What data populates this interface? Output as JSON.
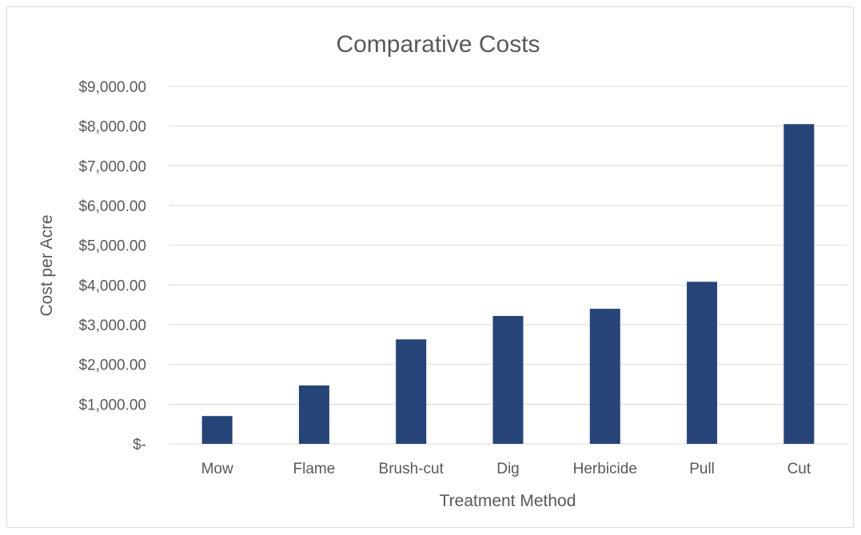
{
  "chart_data": {
    "type": "bar",
    "title": "Comparative Costs",
    "xlabel": "Treatment Method",
    "ylabel": "Cost per Acre",
    "categories": [
      "Mow",
      "Flame",
      "Brush-cut",
      "Dig",
      "Herbicide",
      "Pull",
      "Cut"
    ],
    "values": [
      700,
      1470,
      2630,
      3220,
      3400,
      4080,
      8050
    ],
    "ylim": [
      0,
      9000
    ],
    "yticks": [
      0,
      1000,
      2000,
      3000,
      4000,
      5000,
      6000,
      7000,
      8000,
      9000
    ],
    "ytick_labels": [
      "$-",
      "$1,000.00",
      "$2,000.00",
      "$3,000.00",
      "$4,000.00",
      "$5,000.00",
      "$6,000.00",
      "$7,000.00",
      "$8,000.00",
      "$9,000.00"
    ],
    "grid": true,
    "legend": "none",
    "bar_color": "#264478",
    "grid_color": "#d9d9d9"
  }
}
